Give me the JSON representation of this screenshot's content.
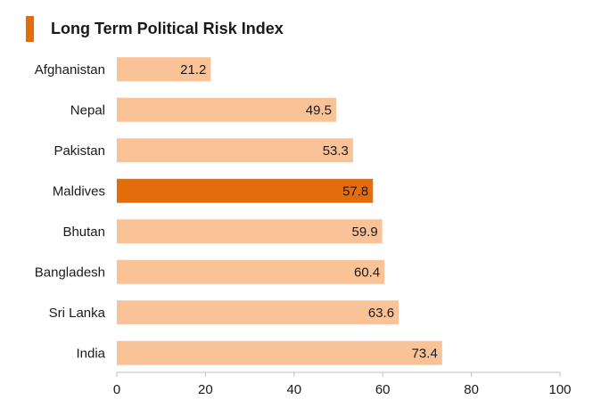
{
  "chart_data": {
    "type": "bar",
    "orientation": "horizontal",
    "title": "Long Term Political Risk Index",
    "categories": [
      "Afghanistan",
      "Nepal",
      "Pakistan",
      "Maldives",
      "Bhutan",
      "Bangladesh",
      "Sri Lanka",
      "India"
    ],
    "values": [
      21.2,
      49.5,
      53.3,
      57.8,
      59.9,
      60.4,
      63.6,
      73.4
    ],
    "value_labels": [
      "21.2",
      "49.5",
      "53.3",
      "57.8",
      "59.9",
      "60.4",
      "63.6",
      "73.4"
    ],
    "highlight_category": "Maldives",
    "xlim": [
      0,
      100
    ],
    "xticks": [
      0,
      20,
      40,
      60,
      80,
      100
    ],
    "xlabel": "",
    "ylabel": "",
    "grid": false,
    "legend": "none"
  },
  "colors": {
    "bar": "#f9c297",
    "highlight": "#e46c0a",
    "title_accent": "#e46c0a",
    "axis": "#bfbfbf",
    "text": "#1a1a1a"
  }
}
